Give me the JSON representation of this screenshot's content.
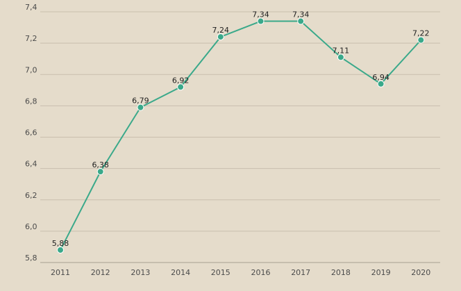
{
  "chart_data": {
    "type": "line",
    "title": "",
    "xlabel": "",
    "ylabel": "",
    "categories": [
      "2011",
      "2012",
      "2013",
      "2014",
      "2015",
      "2016",
      "2017",
      "2018",
      "2019",
      "2020"
    ],
    "series": [
      {
        "values": [
          5.88,
          6.38,
          6.79,
          6.92,
          7.24,
          7.34,
          7.34,
          7.11,
          6.94,
          7.22
        ],
        "value_labels": [
          "5,88",
          "6,38",
          "6,79",
          "6,92",
          "7,24",
          "7,34",
          "7,34",
          "7,11",
          "6,94",
          "7,22"
        ],
        "color": "#3aa98a"
      }
    ],
    "ylim": [
      5.8,
      7.4
    ],
    "yticks": [
      5.8,
      6.0,
      6.2,
      6.4,
      6.6,
      6.8,
      7.0,
      7.2,
      7.4
    ],
    "ytick_labels": [
      "5,8",
      "6,0",
      "6,2",
      "6,4",
      "6,6",
      "6,8",
      "7,0",
      "7,2",
      "7,4"
    ],
    "grid": true,
    "legend": "none",
    "background_color": "#e5dccb",
    "grid_color": "#c9bfae"
  }
}
